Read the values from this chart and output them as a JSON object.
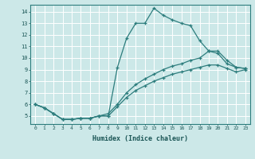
{
  "xlabel": "Humidex (Indice chaleur)",
  "ylabel": "",
  "bg_color": "#cce8e8",
  "grid_color": "#ffffff",
  "line_color": "#2d7d7d",
  "xlim": [
    -0.5,
    23.5
  ],
  "ylim": [
    4.3,
    14.6
  ],
  "xticks": [
    0,
    1,
    2,
    3,
    4,
    5,
    6,
    7,
    8,
    9,
    10,
    11,
    12,
    13,
    14,
    15,
    16,
    17,
    18,
    19,
    20,
    21,
    22,
    23
  ],
  "yticks": [
    5,
    6,
    7,
    8,
    9,
    10,
    11,
    12,
    13,
    14
  ],
  "line1_x": [
    0,
    1,
    2,
    3,
    4,
    5,
    6,
    7,
    8,
    9,
    10,
    11,
    12,
    13,
    14,
    15,
    16,
    17,
    18,
    19,
    20,
    21,
    22,
    23
  ],
  "line1_y": [
    6.0,
    5.7,
    5.2,
    4.7,
    4.7,
    4.8,
    4.8,
    5.0,
    5.0,
    9.2,
    11.7,
    13.0,
    13.0,
    14.3,
    13.7,
    13.3,
    13.0,
    12.8,
    11.5,
    10.6,
    10.4,
    9.5,
    9.2,
    9.1
  ],
  "line2_x": [
    0,
    1,
    2,
    3,
    4,
    5,
    6,
    7,
    8,
    9,
    10,
    11,
    12,
    13,
    14,
    15,
    16,
    17,
    18,
    19,
    20,
    21,
    22,
    23
  ],
  "line2_y": [
    6.0,
    5.7,
    5.2,
    4.7,
    4.7,
    4.8,
    4.8,
    5.0,
    5.2,
    6.0,
    7.0,
    7.7,
    8.2,
    8.6,
    9.0,
    9.3,
    9.5,
    9.8,
    10.0,
    10.6,
    10.6,
    9.8,
    9.2,
    9.1
  ],
  "line3_x": [
    0,
    1,
    2,
    3,
    4,
    5,
    6,
    7,
    8,
    9,
    10,
    11,
    12,
    13,
    14,
    15,
    16,
    17,
    18,
    19,
    20,
    21,
    22,
    23
  ],
  "line3_y": [
    6.0,
    5.7,
    5.2,
    4.7,
    4.7,
    4.8,
    4.8,
    5.0,
    5.0,
    5.8,
    6.6,
    7.2,
    7.6,
    8.0,
    8.3,
    8.6,
    8.8,
    9.0,
    9.2,
    9.4,
    9.4,
    9.1,
    8.8,
    9.0
  ]
}
